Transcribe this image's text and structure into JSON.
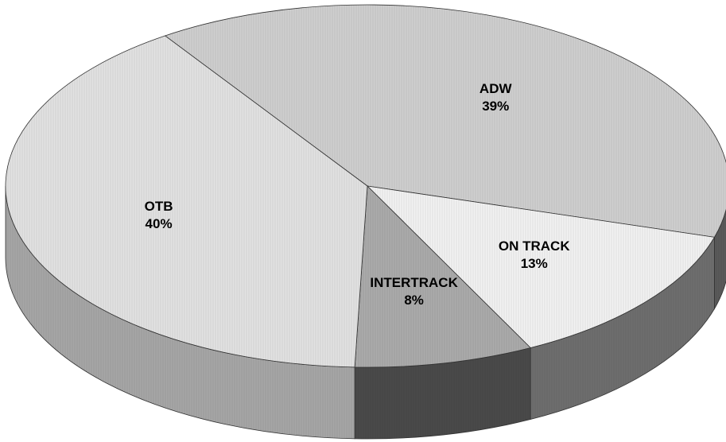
{
  "chart_data": {
    "type": "pie",
    "categories": [
      "ADW",
      "ON TRACK",
      "INTERTRACK",
      "OTB"
    ],
    "values": [
      39,
      13,
      8,
      40
    ],
    "value_labels": [
      "39%",
      "13%",
      "8%",
      "40%"
    ],
    "colors": [
      "#cfcfcf",
      "#f2f2f2",
      "#ababab",
      "#e2e2e2"
    ],
    "side_colors": [
      "#5a5a5a",
      "#6e6e6e",
      "#4a4a4a",
      "#a6a6a6"
    ]
  }
}
